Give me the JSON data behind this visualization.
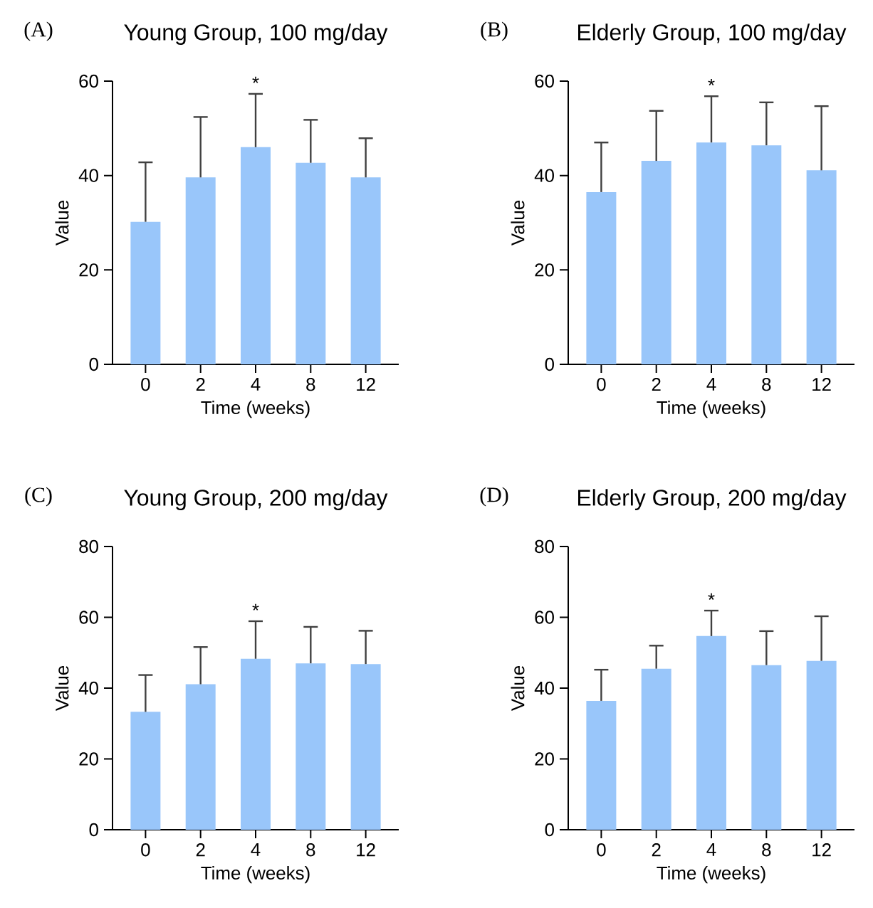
{
  "chart_data": [
    {
      "type": "bar",
      "title": "Young Group, 100 mg/day",
      "xlabel": "Time (weeks)",
      "ylabel": "Value",
      "categories": [
        "0",
        "2",
        "4",
        "8",
        "12"
      ],
      "values": [
        30.2,
        39.6,
        46.0,
        42.7,
        39.6
      ],
      "errors": [
        [
          30.2,
          42.8
        ],
        [
          39.6,
          52.4
        ],
        [
          46.0,
          57.3
        ],
        [
          42.7,
          51.8
        ],
        [
          39.6,
          47.9
        ]
      ],
      "color": "#99c6fa",
      "ylim": [
        0,
        60
      ],
      "yticks": [
        0,
        20,
        40,
        60
      ],
      "annotations": [
        "(A)",
        "*"
      ]
    },
    {
      "type": "bar",
      "title": "Elderly Group, 100 mg/day",
      "xlabel": "Time (weeks)",
      "ylabel": "Value",
      "categories": [
        "0",
        "2",
        "4",
        "8",
        "12"
      ],
      "values": [
        36.5,
        43.1,
        47.0,
        46.4,
        41.1
      ],
      "errors": [
        [
          36.5,
          47.0
        ],
        [
          43.1,
          53.7
        ],
        [
          47.0,
          56.8
        ],
        [
          46.4,
          55.5
        ],
        [
          41.1,
          54.7
        ]
      ],
      "color": "#99c6fa",
      "ylim": [
        0,
        60
      ],
      "yticks": [
        0,
        20,
        40,
        60
      ],
      "annotations": [
        "(B)",
        "*"
      ]
    },
    {
      "type": "bar",
      "title": "Young Group, 200 mg/day",
      "xlabel": "Time (weeks)",
      "ylabel": "Value",
      "categories": [
        "0",
        "2",
        "4",
        "8",
        "12"
      ],
      "values": [
        33.3,
        41.1,
        48.3,
        47.0,
        46.8
      ],
      "errors": [
        [
          33.3,
          43.7
        ],
        [
          41.1,
          51.6
        ],
        [
          48.3,
          58.9
        ],
        [
          47.0,
          57.3
        ],
        [
          46.8,
          56.2
        ]
      ],
      "color": "#99c6fa",
      "ylim": [
        0,
        80
      ],
      "yticks": [
        0,
        20,
        40,
        60,
        80
      ],
      "annotations": [
        "(C)",
        "*"
      ]
    },
    {
      "type": "bar",
      "title": "Elderly Group, 200 mg/day",
      "xlabel": "Time (weeks)",
      "ylabel": "Value",
      "categories": [
        "0",
        "2",
        "4",
        "8",
        "12"
      ],
      "values": [
        36.4,
        45.5,
        54.7,
        46.5,
        47.7
      ],
      "errors": [
        [
          36.4,
          45.2
        ],
        [
          45.5,
          52.0
        ],
        [
          54.7,
          61.9
        ],
        [
          46.5,
          56.1
        ],
        [
          47.7,
          60.3
        ]
      ],
      "color": "#99c6fa",
      "ylim": [
        0,
        80
      ],
      "yticks": [
        0,
        20,
        40,
        60,
        80
      ],
      "annotations": [
        "(D)",
        "*"
      ]
    }
  ]
}
